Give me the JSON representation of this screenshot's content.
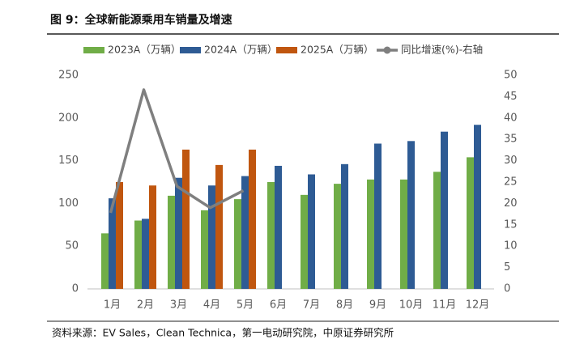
{
  "chart_data": {
    "type": "bar",
    "title": "图 9：全球新能源乘用车销量及增速",
    "source": "资料来源：EV Sales，Clean Technica，第一电动研究院，中原证券研究所",
    "categories": [
      "1月",
      "2月",
      "3月",
      "4月",
      "5月",
      "6月",
      "7月",
      "8月",
      "9月",
      "10月",
      "11月",
      "12月"
    ],
    "series": [
      {
        "name": "2023A（万辆）",
        "color": "#70ad47",
        "values": [
          65,
          80,
          109,
          92,
          105,
          125,
          110,
          123,
          128,
          128,
          137,
          154
        ]
      },
      {
        "name": "2024A（万辆）",
        "color": "#2e5b94",
        "values": [
          106,
          82,
          130,
          121,
          132,
          144,
          134,
          146,
          170,
          173,
          184,
          192
        ]
      },
      {
        "name": "2025A（万辆）",
        "color": "#c0560f",
        "values": [
          125,
          121,
          163,
          145,
          163,
          null,
          null,
          null,
          null,
          null,
          null,
          null
        ]
      },
      {
        "name": "同比增速(%)-右轴",
        "color": "#7f7f7f",
        "type": "line",
        "axis": "y2",
        "values": [
          17.8,
          46.6,
          24,
          19,
          23,
          null,
          null,
          null,
          null,
          null,
          null,
          null
        ]
      }
    ],
    "ylim": [
      0,
      250
    ],
    "yticks": [
      0,
      50,
      100,
      150,
      200,
      250
    ],
    "y2lim": [
      0,
      50
    ],
    "y2ticks": [
      0,
      5,
      10,
      15,
      20,
      25,
      30,
      35,
      40,
      45,
      50
    ]
  }
}
